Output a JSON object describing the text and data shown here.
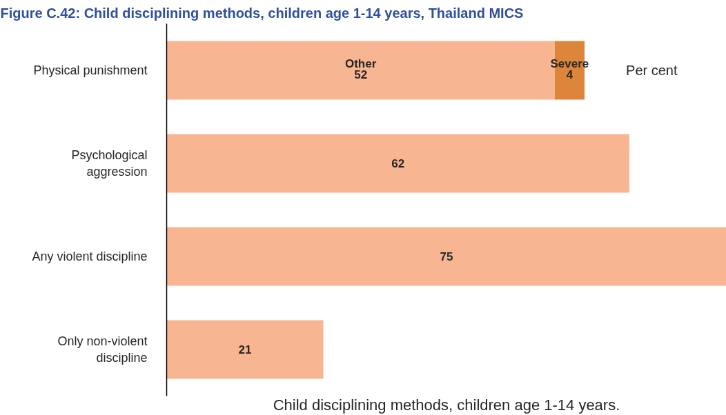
{
  "chart_data": {
    "type": "bar",
    "title": "Figure C.42: Child disciplining methods, children age 1-14 years, Thailand MICS",
    "xlabel": "Child disciplining methods, children age 1-14 years.",
    "annotations": [
      "Per cent"
    ],
    "orientation": "horizontal",
    "stacked": true,
    "categories": [
      "Physical punishment",
      "Psychological aggression",
      "Any violent discipline",
      "Only non-violent discipline"
    ],
    "series": [
      {
        "name": "Other",
        "color": "#f8b592",
        "values": [
          52,
          62,
          75,
          21
        ]
      },
      {
        "name": "Severe",
        "color": "#dc853b",
        "values": [
          4,
          null,
          null,
          null
        ]
      }
    ],
    "xlim": [
      0,
      75
    ],
    "data_labels": true,
    "tick_labels": "y"
  }
}
